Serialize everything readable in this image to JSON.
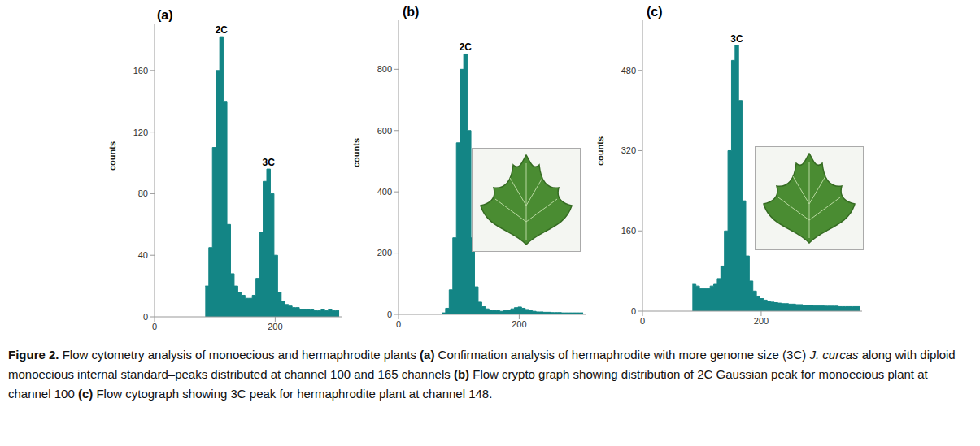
{
  "chart_data": [
    {
      "type": "histogram",
      "title": "(a)",
      "ylabel": "counts",
      "color": "#138585",
      "bins": [
        84,
        90,
        96,
        102,
        108,
        114,
        120,
        126,
        132,
        138,
        144,
        150,
        156,
        162,
        168,
        174,
        180,
        186,
        192,
        198,
        204,
        210,
        216,
        222,
        228,
        234,
        240,
        246,
        252,
        258,
        264,
        270,
        276,
        282,
        288,
        294,
        300,
        306
      ],
      "counts": [
        20,
        45,
        110,
        160,
        182,
        140,
        60,
        28,
        20,
        16,
        14,
        12,
        12,
        14,
        25,
        55,
        88,
        96,
        80,
        40,
        16,
        10,
        8,
        7,
        6,
        6,
        5,
        5,
        5,
        5,
        4,
        4,
        5,
        4,
        5,
        4,
        4
      ],
      "xlim": [
        0,
        310
      ],
      "xticks": [
        0,
        200
      ],
      "ylim": [
        0,
        190
      ],
      "yticks": [
        0,
        40,
        80,
        120,
        160
      ],
      "annotations": [
        {
          "text": "2C",
          "x": 111,
          "y": 182
        },
        {
          "text": "3C",
          "x": 189,
          "y": 96
        }
      ]
    },
    {
      "type": "histogram",
      "title": "(b)",
      "ylabel": "counts",
      "color": "#138585",
      "bins": [
        72,
        78,
        84,
        90,
        96,
        102,
        108,
        114,
        120,
        126,
        132,
        138,
        144,
        150,
        156,
        162,
        168,
        174,
        180,
        186,
        192,
        198,
        204,
        210,
        216,
        222,
        228,
        234,
        240,
        246,
        252,
        258,
        264,
        270,
        276,
        282,
        288,
        294,
        300,
        306
      ],
      "counts": [
        5,
        20,
        80,
        250,
        560,
        800,
        850,
        600,
        250,
        90,
        40,
        25,
        18,
        14,
        12,
        12,
        10,
        12,
        14,
        18,
        22,
        24,
        20,
        16,
        12,
        10,
        8,
        8,
        7,
        7,
        6,
        6,
        6,
        5,
        5,
        5,
        5,
        5,
        5
      ],
      "xlim": [
        0,
        310
      ],
      "xticks": [
        0,
        200
      ],
      "ylim": [
        0,
        960
      ],
      "yticks": [
        0,
        200,
        400,
        600,
        800
      ],
      "annotations": [
        {
          "text": "2C",
          "x": 111,
          "y": 850
        }
      ]
    },
    {
      "type": "histogram",
      "title": "(c)",
      "ylabel": "counts",
      "color": "#138585",
      "bins": [
        84,
        90,
        96,
        102,
        108,
        114,
        120,
        126,
        132,
        138,
        144,
        150,
        156,
        162,
        168,
        174,
        180,
        186,
        192,
        198,
        204,
        210,
        216,
        222,
        228,
        234,
        240,
        246,
        252,
        258,
        264,
        270,
        276,
        282,
        288,
        294,
        300,
        306,
        312,
        318,
        324,
        330,
        336,
        342,
        348,
        354,
        360,
        366
      ],
      "counts": [
        55,
        50,
        45,
        45,
        45,
        50,
        55,
        65,
        90,
        160,
        320,
        500,
        530,
        420,
        220,
        110,
        60,
        40,
        30,
        25,
        22,
        20,
        18,
        17,
        16,
        15,
        15,
        14,
        14,
        13,
        13,
        12,
        12,
        12,
        11,
        11,
        11,
        10,
        10,
        10,
        10,
        9,
        9,
        9,
        9,
        9,
        9
      ],
      "xlim": [
        0,
        370
      ],
      "xticks": [
        0,
        200
      ],
      "ylim": [
        0,
        580
      ],
      "yticks": [
        0,
        160,
        320,
        480
      ],
      "annotations": [
        {
          "text": "3C",
          "x": 159,
          "y": 530
        }
      ]
    }
  ],
  "caption": [
    {
      "text": "Figure 2.",
      "style": "bold"
    },
    {
      "text": " Flow cytometry analysis of monoecious and hermaphrodite plants ",
      "style": "plain"
    },
    {
      "text": "(a)",
      "style": "bold"
    },
    {
      "text": " Confirmation analysis of hermaphrodite with more genome size (3C) ",
      "style": "plain"
    },
    {
      "text": "J. curcas",
      "style": "italic"
    },
    {
      "text": " along with diploid monoecious internal standard–peaks distributed at channel 100 and 165 channels ",
      "style": "plain"
    },
    {
      "text": "(b)",
      "style": "bold"
    },
    {
      "text": " Flow crypto graph showing distribution of 2C Gaussian peak for monoecious plant at channel 100 ",
      "style": "plain"
    },
    {
      "text": "(c)",
      "style": "bold"
    },
    {
      "text": " Flow cytograph showing 3C peak for hermaphrodite plant at channel 148.",
      "style": "plain"
    }
  ]
}
